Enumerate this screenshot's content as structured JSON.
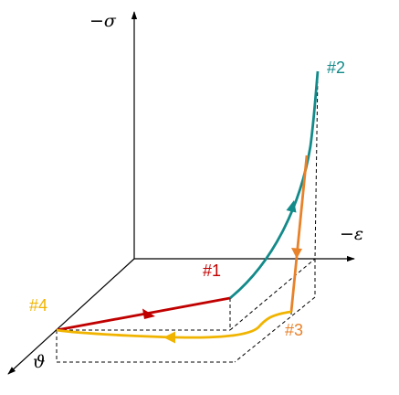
{
  "axes": {
    "sigma_label": "−σ",
    "epsilon_label": "−ε",
    "theta_label": "ϑ"
  },
  "points": {
    "p1": {
      "label": "#1",
      "color": "#c00000"
    },
    "p2": {
      "label": "#2",
      "color": "#138a8a"
    },
    "p3": {
      "label": "#3",
      "color": "#e8822a"
    },
    "p4": {
      "label": "#4",
      "color": "#f0b400"
    }
  },
  "colors": {
    "segment_4_to_1": "#c00000",
    "segment_1_to_2": "#138a8a",
    "segment_2_to_3": "#e8822a",
    "segment_3_to_4": "#f0b400",
    "axes": "#000000",
    "guides": "#000000"
  }
}
